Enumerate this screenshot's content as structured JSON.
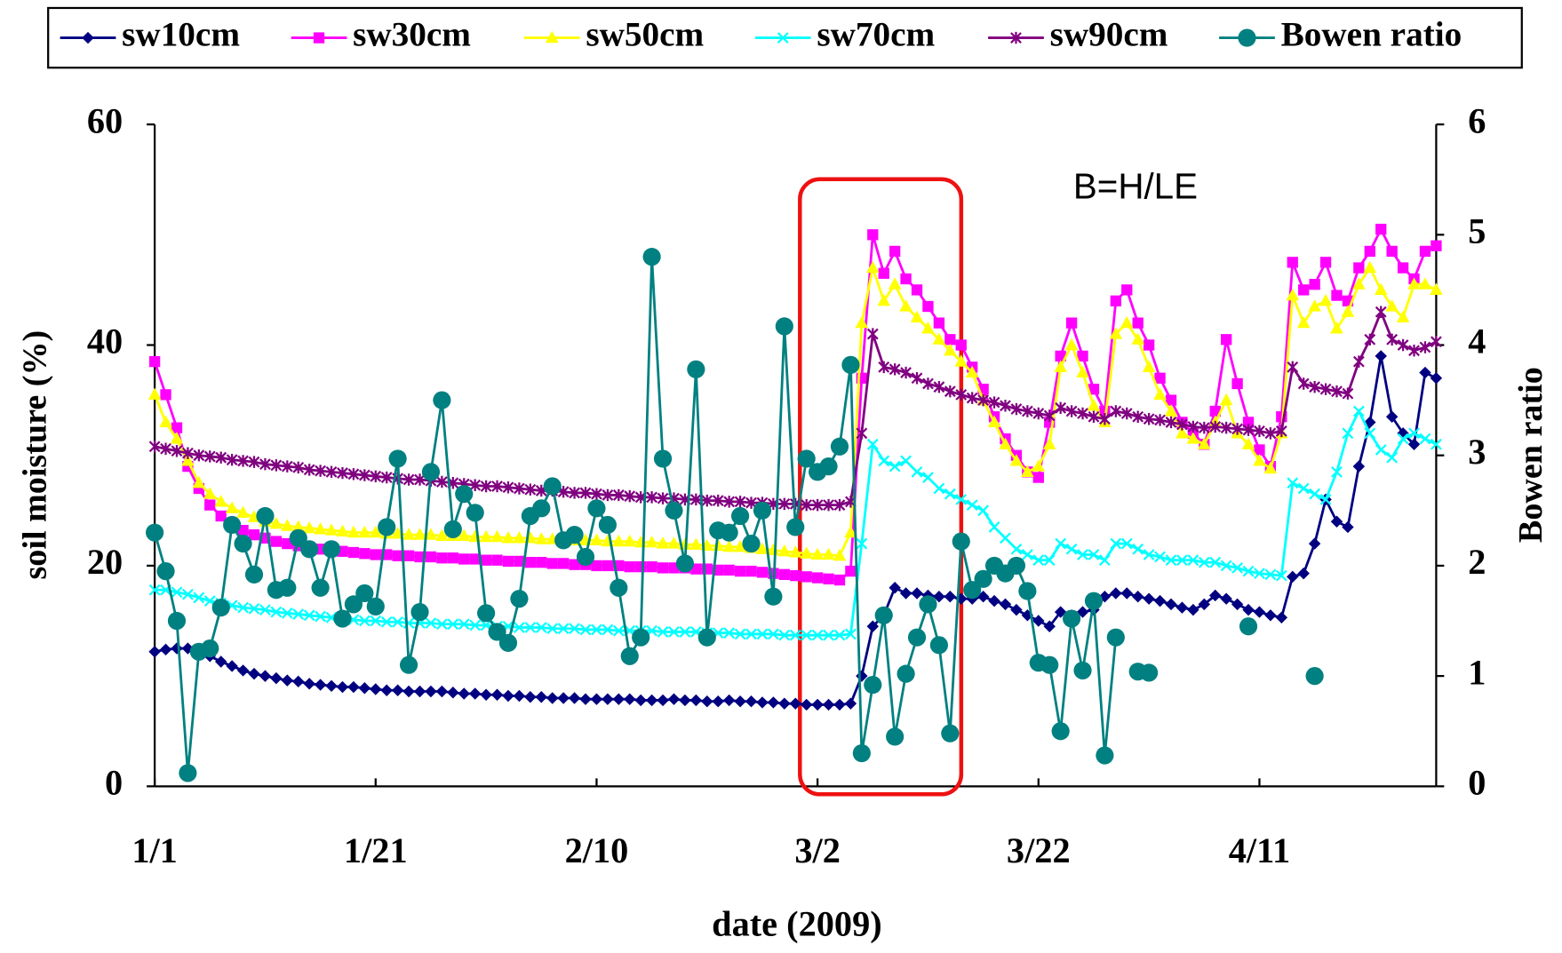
{
  "chart_data": {
    "type": "line",
    "xlabel": "date (2009)",
    "ylabel": "soil moisture (%)",
    "y2label": "Bowen ratio",
    "annotation": "B=H/LE",
    "categories": [
      "1/1",
      null,
      null,
      null,
      null,
      null,
      null,
      null,
      null,
      null,
      null,
      null,
      null,
      null,
      null,
      null,
      null,
      null,
      null,
      null,
      "1/21",
      null,
      null,
      null,
      null,
      null,
      null,
      null,
      null,
      null,
      null,
      null,
      null,
      null,
      null,
      null,
      null,
      null,
      null,
      null,
      "2/10",
      null,
      null,
      null,
      null,
      null,
      null,
      null,
      null,
      null,
      null,
      null,
      null,
      null,
      null,
      null,
      null,
      null,
      null,
      null,
      "3/2",
      null,
      null,
      null,
      null,
      null,
      null,
      null,
      null,
      null,
      null,
      null,
      null,
      null,
      null,
      null,
      null,
      null,
      null,
      null,
      "3/22",
      null,
      null,
      null,
      null,
      null,
      null,
      null,
      null,
      null,
      null,
      null,
      null,
      null,
      null,
      null,
      null,
      null,
      null,
      null,
      "4/11",
      null,
      null,
      null,
      null,
      null,
      null,
      null,
      null,
      null,
      null,
      null,
      null,
      null,
      null,
      null,
      null
    ],
    "ylim": [
      0,
      60
    ],
    "yticks": [
      0,
      20,
      40,
      60
    ],
    "y2lim": [
      0,
      6
    ],
    "y2ticks": [
      0,
      1,
      2,
      3,
      4,
      5,
      6
    ],
    "series": [
      {
        "name": "sw10cm",
        "color": "#000080",
        "marker": "diamond",
        "values": [
          12.2,
          12.4,
          12.5,
          12.5,
          12.3,
          11.8,
          11.3,
          10.9,
          10.5,
          10.2,
          10,
          9.8,
          9.6,
          9.5,
          9.3,
          9.2,
          9.1,
          9,
          9,
          8.9,
          8.8,
          8.7,
          8.7,
          8.6,
          8.6,
          8.6,
          8.6,
          8.5,
          8.4,
          8.4,
          8.3,
          8.3,
          8.2,
          8.2,
          8.1,
          8.1,
          8,
          8,
          8,
          7.9,
          7.9,
          7.9,
          7.9,
          7.9,
          7.8,
          7.8,
          7.8,
          7.9,
          7.8,
          7.8,
          7.7,
          7.7,
          7.8,
          7.7,
          7.7,
          7.6,
          7.6,
          7.5,
          7.5,
          7.4,
          7.4,
          7.4,
          7.4,
          7.5,
          10,
          14.5,
          15.5,
          18,
          17.5,
          17.5,
          17.3,
          17.2,
          17.2,
          17,
          17,
          17.2,
          16.8,
          16.5,
          16,
          15.5,
          15,
          14.5,
          15.8,
          15.5,
          15.8,
          16,
          17.2,
          17.5,
          17.5,
          17.2,
          17,
          16.8,
          16.5,
          16.2,
          16,
          16.5,
          17.3,
          17,
          16.5,
          16,
          15.8,
          15.5,
          15.3,
          19,
          19.3,
          22,
          26,
          24,
          23.5,
          29,
          33,
          39,
          33.5,
          32,
          31,
          37.5,
          37
        ]
      },
      {
        "name": "sw30cm",
        "color": "#ff00ff",
        "marker": "square",
        "values": [
          38.5,
          35.5,
          32.5,
          29,
          27,
          25.5,
          24.5,
          23.8,
          23.2,
          22.8,
          22.5,
          22.2,
          22,
          21.8,
          21.6,
          21.5,
          21.4,
          21.3,
          21.2,
          21.1,
          21,
          21,
          20.9,
          20.9,
          20.8,
          20.8,
          20.7,
          20.7,
          20.6,
          20.6,
          20.5,
          20.5,
          20.4,
          20.4,
          20.3,
          20.3,
          20.2,
          20.2,
          20.1,
          20.1,
          20,
          20,
          20,
          19.9,
          19.9,
          19.9,
          19.8,
          19.8,
          19.8,
          19.7,
          19.7,
          19.6,
          19.6,
          19.5,
          19.5,
          19.4,
          19.3,
          19.2,
          19.1,
          19,
          18.9,
          18.8,
          18.7,
          19.5,
          37,
          50,
          46.5,
          48.5,
          46,
          45,
          43.5,
          42,
          40.5,
          40,
          38,
          36,
          33.5,
          31.5,
          30,
          28.5,
          28,
          33,
          39,
          42,
          39,
          36,
          34,
          44,
          45,
          42,
          40,
          37,
          35,
          33,
          32,
          31,
          34,
          40.5,
          36.5,
          33,
          30.5,
          29,
          33.5,
          47.5,
          45,
          45.5,
          47.5,
          44.5,
          44,
          47,
          48.5,
          50.5,
          48.5,
          47,
          46,
          48.5,
          49
        ]
      },
      {
        "name": "sw50cm",
        "color": "#ffff00",
        "marker": "triangle",
        "values": [
          35.5,
          33,
          31.5,
          29.5,
          27.5,
          26.5,
          25.8,
          25.2,
          24.8,
          24.4,
          24,
          23.8,
          23.6,
          23.5,
          23.4,
          23.3,
          23.2,
          23.1,
          23,
          23,
          23,
          22.9,
          22.9,
          22.8,
          22.8,
          22.8,
          22.7,
          22.7,
          22.7,
          22.6,
          22.6,
          22.6,
          22.5,
          22.5,
          22.5,
          22.4,
          22.4,
          22.4,
          22.3,
          22.3,
          22.3,
          22.2,
          22.2,
          22.2,
          22.1,
          22.1,
          22,
          22,
          21.9,
          21.9,
          21.8,
          21.8,
          21.7,
          21.7,
          21.6,
          21.5,
          21.4,
          21.3,
          21.2,
          21.1,
          21,
          21,
          20.9,
          23,
          42,
          47,
          44,
          45.5,
          43.5,
          42.5,
          41.5,
          40.5,
          39.5,
          38.5,
          37.5,
          35,
          33,
          31,
          29.5,
          28.5,
          29,
          31,
          38,
          40,
          37.5,
          34.5,
          33,
          41,
          42,
          40.5,
          38,
          35.5,
          34,
          32,
          31.5,
          31,
          33,
          35,
          32,
          31,
          29.5,
          28.8,
          32,
          44.5,
          42,
          43.5,
          44,
          41.5,
          43,
          45.5,
          47,
          45,
          43.5,
          42.5,
          45.5,
          45.5,
          45
        ]
      },
      {
        "name": "sw70cm",
        "color": "#00ffff",
        "marker": "x",
        "values": [
          17.8,
          17.8,
          17.6,
          17.4,
          17.1,
          16.8,
          16.6,
          16.4,
          16.2,
          16.1,
          16,
          15.8,
          15.7,
          15.6,
          15.5,
          15.4,
          15.3,
          15.2,
          15.1,
          15,
          15,
          14.9,
          14.9,
          14.8,
          14.8,
          14.8,
          14.7,
          14.7,
          14.7,
          14.6,
          14.6,
          14.5,
          14.5,
          14.4,
          14.4,
          14.4,
          14.3,
          14.3,
          14.3,
          14.2,
          14.2,
          14.2,
          14.1,
          14.1,
          14.1,
          14.1,
          14,
          14,
          14,
          14,
          13.9,
          13.9,
          13.9,
          13.8,
          13.8,
          13.8,
          13.8,
          13.7,
          13.7,
          13.7,
          13.7,
          13.7,
          13.7,
          13.8,
          22,
          31,
          29.5,
          29,
          29.5,
          28.5,
          28,
          27,
          26.5,
          26,
          25.5,
          25,
          23.5,
          22.5,
          21.5,
          21,
          20.5,
          20.5,
          22,
          21.5,
          21,
          21,
          20.5,
          22,
          22,
          21.5,
          21,
          20.8,
          20.5,
          20.5,
          20.5,
          20.3,
          20.3,
          20,
          19.8,
          19.5,
          19.3,
          19.2,
          19.1,
          27.5,
          27,
          26.5,
          26,
          28.5,
          32,
          34,
          32,
          30.5,
          29.8,
          31.5,
          32,
          31.5,
          31
        ]
      },
      {
        "name": "sw90cm",
        "color": "#800080",
        "marker": "star",
        "values": [
          30.8,
          30.6,
          30.4,
          30.2,
          30,
          29.9,
          29.8,
          29.6,
          29.5,
          29.4,
          29.2,
          29.1,
          29,
          28.9,
          28.7,
          28.6,
          28.5,
          28.4,
          28.3,
          28.2,
          28.1,
          28,
          27.9,
          27.8,
          27.8,
          27.7,
          27.6,
          27.5,
          27.4,
          27.3,
          27.2,
          27.2,
          27.1,
          27,
          26.9,
          26.8,
          26.8,
          26.7,
          26.6,
          26.6,
          26.5,
          26.4,
          26.4,
          26.3,
          26.2,
          26.2,
          26.1,
          26.1,
          26,
          26,
          25.9,
          25.9,
          25.8,
          25.8,
          25.7,
          25.7,
          25.6,
          25.6,
          25.6,
          25.5,
          25.5,
          25.5,
          25.5,
          25.8,
          32,
          41,
          38,
          37.8,
          37.5,
          37,
          36.5,
          36.2,
          35.8,
          35.5,
          35.2,
          35,
          34.8,
          34.5,
          34.2,
          34,
          33.8,
          33.6,
          34.3,
          34,
          33.8,
          33.5,
          33.3,
          34,
          33.8,
          33.5,
          33.3,
          33.2,
          33,
          32.8,
          32.6,
          32.5,
          32.6,
          32.5,
          32.4,
          32.3,
          32.2,
          32,
          32.2,
          38,
          36.5,
          36.2,
          36,
          35.8,
          35.6,
          38.5,
          40.5,
          43,
          40.5,
          40,
          39.5,
          39.8,
          40.3
        ]
      },
      {
        "name": "Bowen ratio",
        "color": "#008080",
        "marker": "circle",
        "axis": "y2",
        "values": [
          2.3,
          1.95,
          1.5,
          0.12,
          1.22,
          1.25,
          1.62,
          2.37,
          2.2,
          1.92,
          2.45,
          1.78,
          1.8,
          2.25,
          2.15,
          1.8,
          2.15,
          1.52,
          1.65,
          1.75,
          1.63,
          2.35,
          2.97,
          1.1,
          1.58,
          2.85,
          3.5,
          2.33,
          2.65,
          2.48,
          1.57,
          1.4,
          1.3,
          1.7,
          2.45,
          2.52,
          2.72,
          2.23,
          2.28,
          2.08,
          2.52,
          2.37,
          1.8,
          1.18,
          1.35,
          4.8,
          2.97,
          2.5,
          2.02,
          3.78,
          1.35,
          2.32,
          2.3,
          2.45,
          2.2,
          2.5,
          1.72,
          4.17,
          2.35,
          2.97,
          2.85,
          2.9,
          3.08,
          3.82,
          0.3,
          0.92,
          1.55,
          0.45,
          1.02,
          1.35,
          1.65,
          1.28,
          0.48,
          2.22,
          1.78,
          1.88,
          2,
          1.93,
          2,
          1.77,
          1.12,
          1.1,
          0.5,
          1.52,
          1.05,
          1.68,
          0.28,
          1.35,
          null,
          1.04,
          1.03,
          null,
          null,
          null,
          null,
          null,
          null,
          null,
          null,
          1.45,
          null,
          null,
          null,
          null,
          null,
          1,
          null,
          null,
          null,
          null,
          null,
          null,
          null,
          null,
          null,
          null,
          null
        ]
      }
    ]
  }
}
